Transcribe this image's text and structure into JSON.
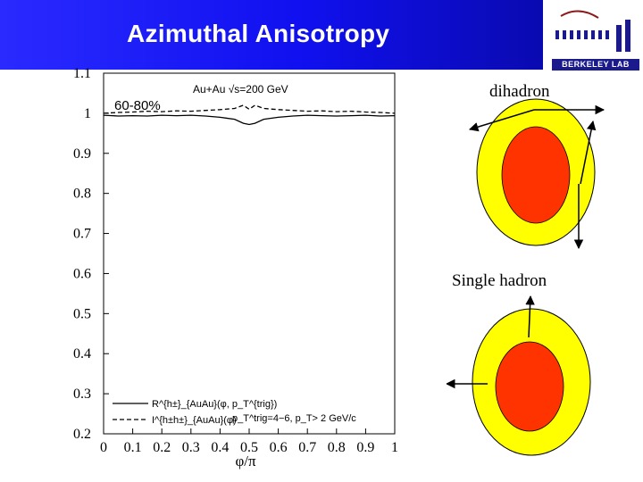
{
  "header": {
    "title": "Azimuthal Anisotropy"
  },
  "logo": {
    "text": "BERKELEY LAB"
  },
  "colors": {
    "title_bg": "#1010f0",
    "outer_ring": "#ffff00",
    "inner_core": "#ff3300"
  },
  "diagram": {
    "dihadron_label": "dihadron",
    "single_label": "Single hadron"
  },
  "chart_data": {
    "type": "line",
    "system_label": "Au+Au √s=200 GeV",
    "centrality_label": "60-80%",
    "cut_label": "p_T^trig=4−6, p_T> 2 GeV/c",
    "xlabel": "φ/π",
    "ylabel": "",
    "xlim": [
      0,
      1
    ],
    "ylim": [
      0.2,
      1.1
    ],
    "x_ticks": [
      "0",
      "0.1",
      "0.2",
      "0.3",
      "0.4",
      "0.5",
      "0.6",
      "0.7",
      "0.8",
      "0.9",
      "1"
    ],
    "y_ticks": [
      "0.2",
      "0.3",
      "0.4",
      "0.5",
      "0.6",
      "0.7",
      "0.8",
      "0.9",
      "1",
      "1.1"
    ],
    "x": [
      0,
      0.05,
      0.1,
      0.15,
      0.2,
      0.25,
      0.3,
      0.35,
      0.4,
      0.45,
      0.48,
      0.5,
      0.52,
      0.55,
      0.6,
      0.65,
      0.7,
      0.75,
      0.8,
      0.85,
      0.9,
      0.95,
      1
    ],
    "series": [
      {
        "name": "R^{h±}_{AuAu}(φ, p_T^{trig})",
        "style": "solid",
        "values": [
          0.995,
          0.993,
          0.994,
          0.993,
          0.995,
          0.994,
          0.995,
          0.993,
          0.99,
          0.985,
          0.975,
          0.972,
          0.975,
          0.985,
          0.99,
          0.993,
          0.995,
          0.994,
          0.993,
          0.994,
          0.995,
          0.993,
          0.994
        ]
      },
      {
        "name": "I^{h±h±}_{AuAu}(φ)",
        "style": "dashed",
        "values": [
          1.0,
          1.002,
          1.003,
          1.005,
          1.004,
          1.006,
          1.005,
          1.007,
          1.009,
          1.012,
          1.02,
          1.01,
          1.02,
          1.012,
          1.009,
          1.007,
          1.005,
          1.006,
          1.004,
          1.005,
          1.003,
          1.002,
          1.0
        ]
      }
    ]
  }
}
